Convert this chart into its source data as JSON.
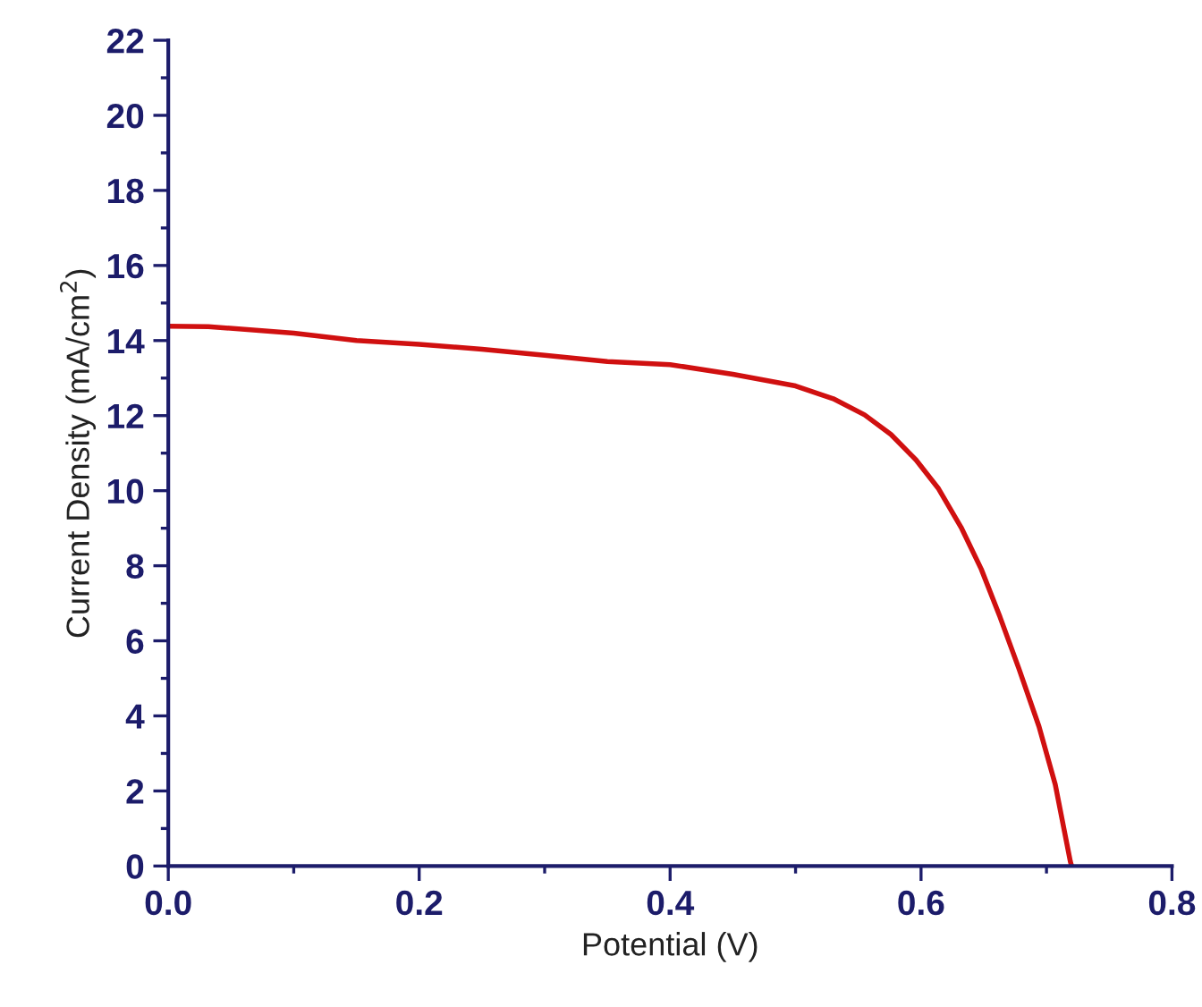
{
  "chart_data": {
    "type": "line",
    "xlabel": "Potential (V)",
    "ylabel": "Current Density (mA/cm$^{2}$)",
    "x": [
      0,
      0.032,
      0.1,
      0.15,
      0.2,
      0.25,
      0.3,
      0.35,
      0.4,
      0.45,
      0.5,
      0.53,
      0.555,
      0.576,
      0.596,
      0.614,
      0.632,
      0.648,
      0.663,
      0.678,
      0.694,
      0.707,
      0.719,
      0.72
    ],
    "series": [
      {
        "color": "#d01010",
        "values": [
          14.38,
          14.37,
          14.2,
          14.0,
          13.9,
          13.77,
          13.61,
          13.44,
          13.36,
          13.1,
          12.79,
          12.45,
          12.02,
          11.5,
          10.82,
          10.05,
          9.02,
          7.91,
          6.63,
          5.26,
          3.72,
          2.17,
          0.12,
          0
        ]
      }
    ],
    "xlim": [
      0,
      0.8
    ],
    "ylim": [
      0,
      22
    ],
    "xticks": [
      {
        "value": 0,
        "label": "0.0"
      },
      0.2,
      0.4,
      0.6,
      0.8
    ],
    "yticks": [
      0,
      2,
      4,
      6,
      8,
      10,
      12,
      14,
      16,
      18,
      20,
      22
    ],
    "grid": false,
    "legend": false,
    "marker": "none",
    "line_style": "solid"
  }
}
